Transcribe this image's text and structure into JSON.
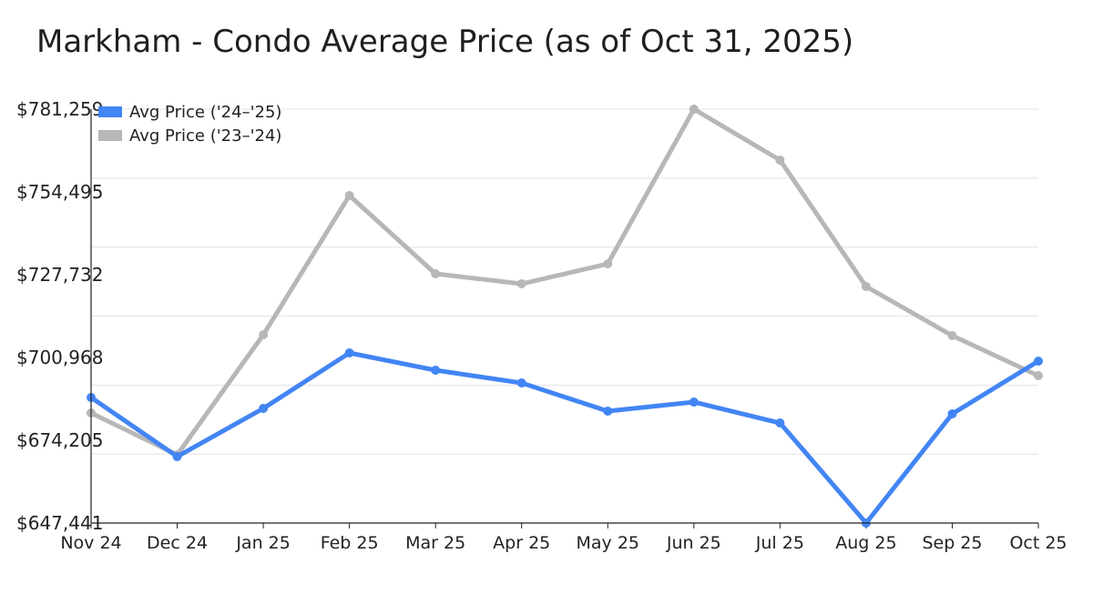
{
  "chart_data": {
    "type": "line",
    "title": "Markham - Condo Average Price (as of Oct 31, 2025)",
    "xlabel": "",
    "ylabel": "",
    "categories": [
      "Nov 24",
      "Dec 24",
      "Jan 25",
      "Feb 25",
      "Mar 25",
      "Apr 25",
      "May 25",
      "Jun 25",
      "Jul 25",
      "Aug 25",
      "Sep 25",
      "Oct 25"
    ],
    "ylim": [
      647441,
      781259
    ],
    "yticks": [
      647441,
      674205,
      700968,
      727732,
      754495,
      781259
    ],
    "ytick_labels": [
      "$647,441",
      "$674,205",
      "$700,968",
      "$727,732",
      "$754,495",
      "$781,259"
    ],
    "grid": true,
    "legend_position": "top-left",
    "series": [
      {
        "name": "Avg Price ('24–'25)",
        "color": "#4285f4",
        "values": [
          688030,
          668913,
          684500,
          702440,
          696850,
          692730,
          683620,
          686560,
          679790,
          647441,
          682730,
          699790
        ]
      },
      {
        "name": "Avg Price ('23–'24)",
        "color": "#b7b7b7",
        "values": [
          683030,
          669500,
          708320,
          753320,
          728030,
          724790,
          731260,
          781259,
          764790,
          723910,
          708030,
          695090
        ]
      }
    ]
  }
}
